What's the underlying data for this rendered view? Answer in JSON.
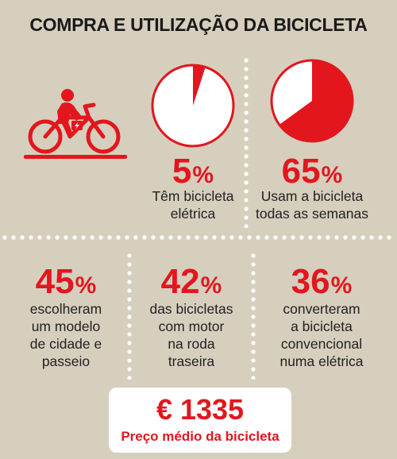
{
  "title": "COMPRA E UTILIZAÇÃO DA BICICLETA",
  "colors": {
    "accent": "#e3161e",
    "background": "#d6cfbe",
    "box": "#ffffff"
  },
  "icons": {
    "bike": "electric-bicycle-icon"
  },
  "chart_data": [
    {
      "type": "pie",
      "value": 5,
      "value_label": "5",
      "unit": "%",
      "description": "Têm bicicleta elétrica"
    },
    {
      "type": "pie",
      "value": 65,
      "value_label": "65",
      "unit": "%",
      "description": "Usam a bicicleta todas as semanas"
    }
  ],
  "stats": [
    {
      "value": "45",
      "unit": "%",
      "lines": [
        "escolheram",
        "um modelo",
        "de cidade e",
        "passeio"
      ]
    },
    {
      "value": "42",
      "unit": "%",
      "lines": [
        "das bicicletas",
        "com motor",
        "na roda",
        "traseira"
      ]
    },
    {
      "value": "36",
      "unit": "%",
      "lines": [
        "converteram",
        "a bicicleta",
        "convencional",
        "numa elétrica"
      ]
    }
  ],
  "pie_desc_lines": [
    [
      "Têm bicicleta",
      "elétrica"
    ],
    [
      "Usam a bicicleta",
      "todas as semanas"
    ]
  ],
  "price": {
    "value": "€ 1335",
    "label": "Preço médio da bicicleta"
  }
}
